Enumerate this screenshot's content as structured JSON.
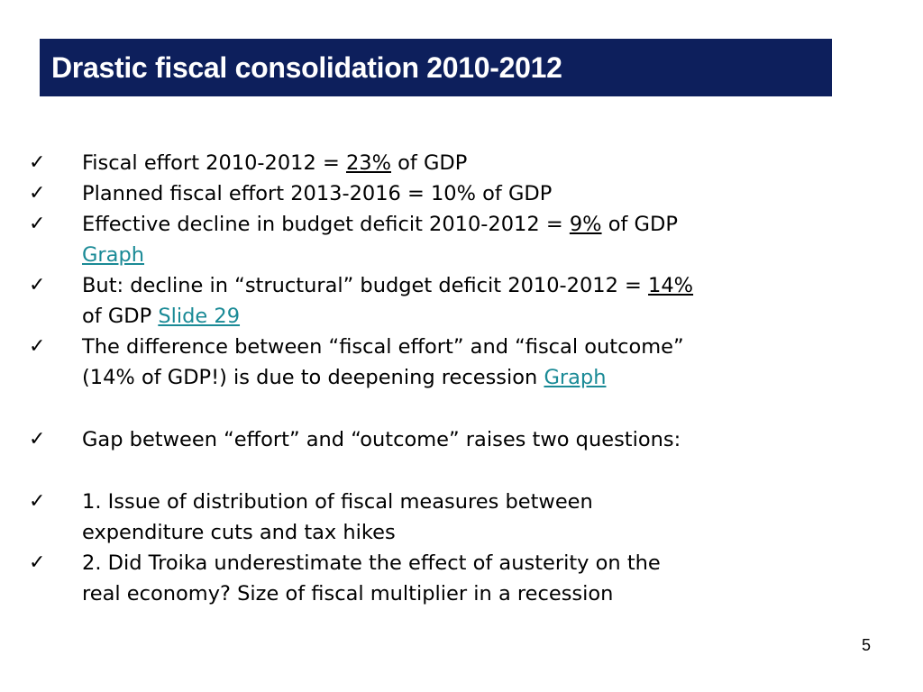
{
  "title": "Drastic fiscal consolidation 2010-2012",
  "check_symbol": "✓",
  "bullets": [
    {
      "pre": "Fiscal effort 2010-2012 = ",
      "emph": "23%",
      "post": " of GDP"
    },
    {
      "text": "Planned fiscal effort 2013-2016 = 10% of GDP"
    },
    {
      "pre": "Effective decline in budget deficit 2010-2012 = ",
      "emph": "9%",
      "post": " of GDP",
      "link": "Graph"
    },
    {
      "pre": "But: decline in “structural” budget deficit 2010-2012 = ",
      "emph": "14%",
      "line2_pre": "of GDP ",
      "link": "Slide 29"
    },
    {
      "line1": "The difference between “fiscal effort” and “fiscal outcome”",
      "line2_pre": "(14% of GDP!) is due to deepening recession ",
      "link": "Graph"
    },
    {
      "text": "Gap between “effort” and “outcome” raises two questions:"
    },
    {
      "line1": "1. Issue of distribution of fiscal measures between",
      "line2": "expenditure cuts and tax hikes"
    },
    {
      "line1": "2. Did Troika underestimate the effect of austerity on the",
      "line2": "real economy? Size of fiscal multiplier in a recession"
    }
  ],
  "page_number": "5"
}
